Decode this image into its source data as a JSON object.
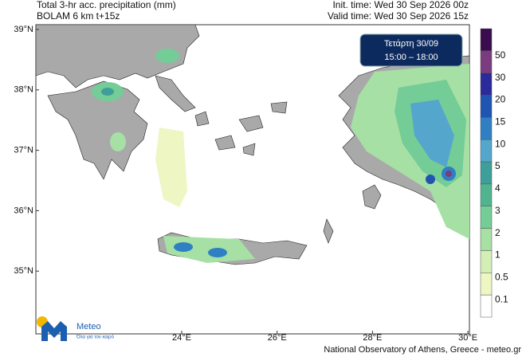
{
  "header": {
    "title_line1": "Total 3-hr acc. precipitation (mm)",
    "title_line2": "BOLAM 6 km t+15z",
    "init_time": "Init. time: Wed 30 Sep 2026 00z",
    "valid_time": "Valid time: Wed 30 Sep 2026 15z"
  },
  "map": {
    "lat_labels": [
      "39°N",
      "38°N",
      "37°N",
      "36°N",
      "35°N"
    ],
    "lon_labels": [
      "24°E",
      "26°E",
      "28°E",
      "30°E"
    ],
    "badge": {
      "day": "Τετάρτη 30/09",
      "time": "15:00 – 18:00"
    }
  },
  "legend": {
    "labels": [
      "50",
      "30",
      "20",
      "15",
      "10",
      "5",
      "4",
      "3",
      "2",
      "1",
      "0.5",
      "0.1"
    ],
    "colors": [
      "#3b0b4f",
      "#7b3b7f",
      "#2a2a9a",
      "#1f55b0",
      "#2f7fc2",
      "#55a6cc",
      "#3e9f9a",
      "#4fb48f",
      "#74cc96",
      "#a6e0a4",
      "#d3efb6",
      "#eef6c4",
      "#ffffff"
    ]
  },
  "footer": {
    "logo": "Meteo",
    "slogan": "Όλα για τον καιρό",
    "credit": "National Observatory of Athens, Greece - meteo.gr"
  }
}
